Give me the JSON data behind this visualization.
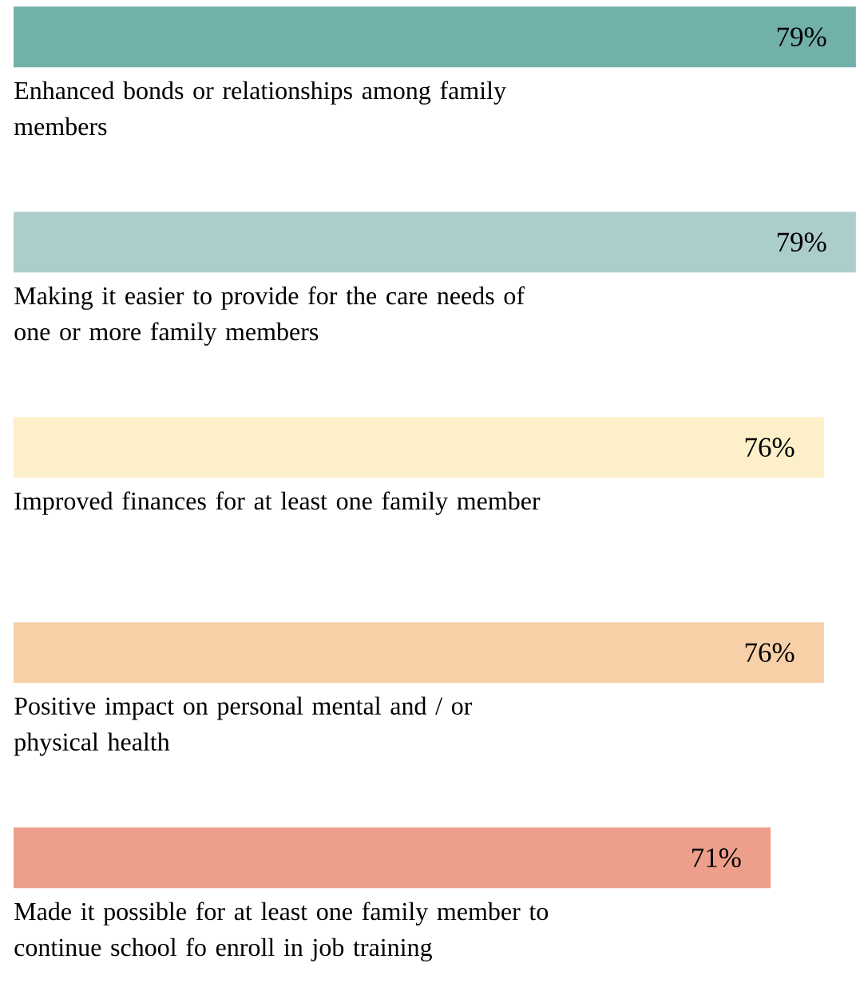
{
  "chart_data": {
    "type": "bar",
    "orientation": "horizontal",
    "categories": [
      "Enhanced bonds or relationships among family members",
      "Making it easier to provide for the care needs of one or more family members",
      "Improved finances for at least one family member",
      "Positive impact on personal mental and / or physical health",
      "Made it possible for at least one family member to continue school fo enroll in job training"
    ],
    "values": [
      79,
      79,
      76,
      76,
      71
    ],
    "value_labels": [
      "79%",
      "79%",
      "76%",
      "76%",
      "71%"
    ],
    "colors": [
      "#72b0aa",
      "#abcdcb",
      "#fdefc9",
      "#f7d0a8",
      "#ee9f8c"
    ]
  }
}
